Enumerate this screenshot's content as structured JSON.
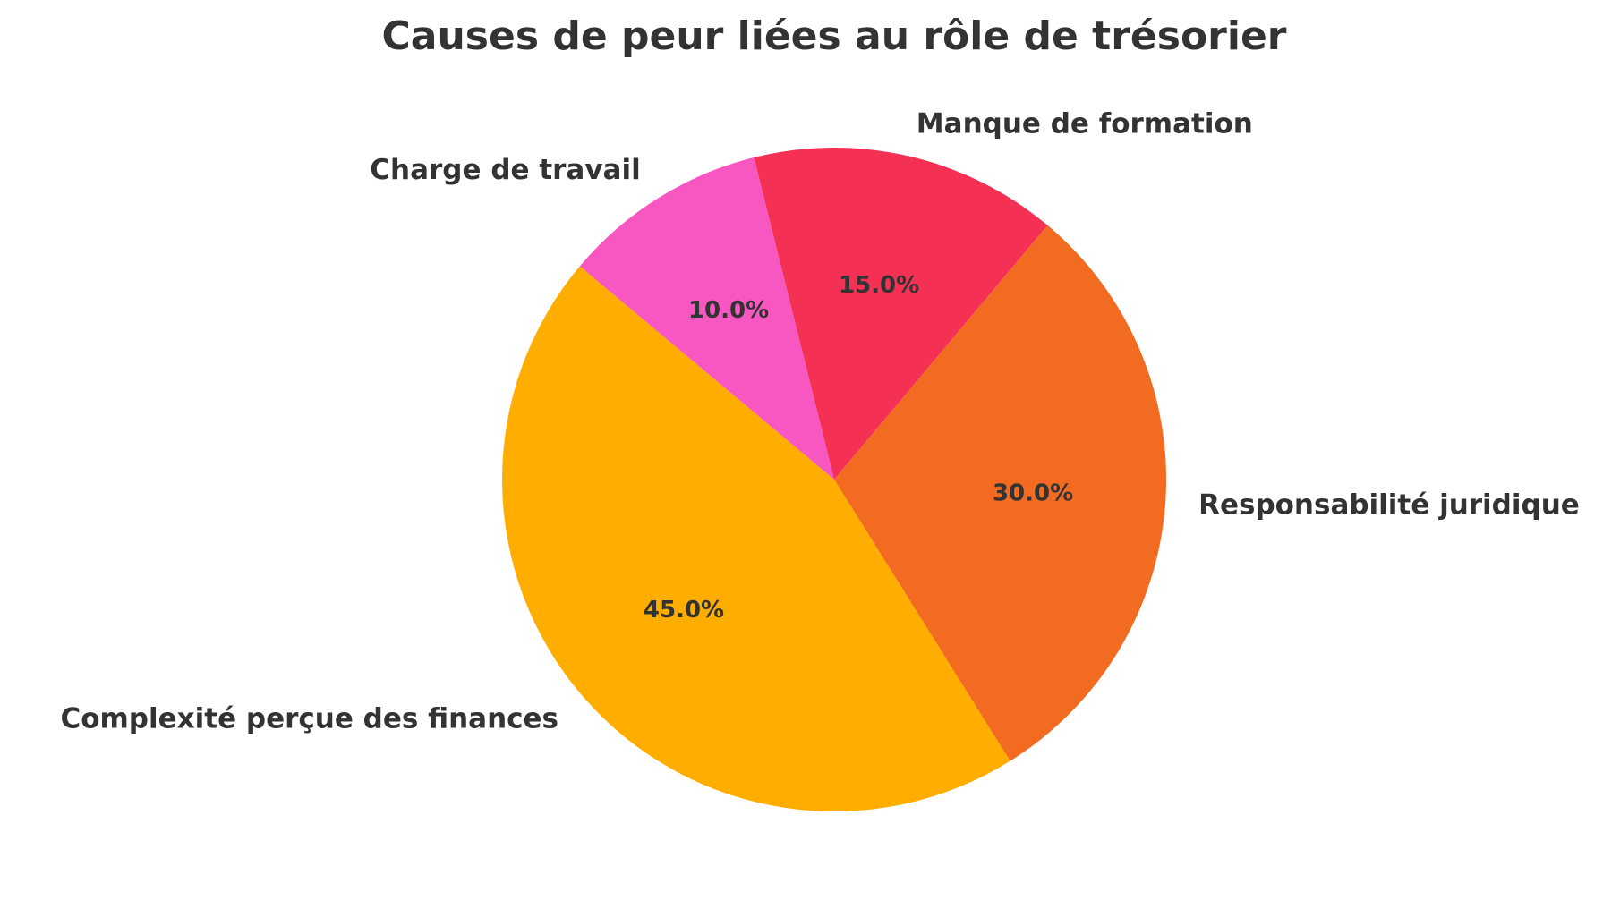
{
  "chart_data": {
    "type": "pie",
    "title": "Causes de peur liées au rôle de trésorier",
    "start_angle_deg": 140,
    "direction": "counterclockwise",
    "slices": [
      {
        "label": "Complexité perçue des finances",
        "value": 45.0,
        "pct_label": "45.0%",
        "color": "#FFAE00"
      },
      {
        "label": "Responsabilité juridique",
        "value": 30.0,
        "pct_label": "30.0%",
        "color": "#F26B21"
      },
      {
        "label": "Manque de formation",
        "value": 15.0,
        "pct_label": "15.0%",
        "color": "#F43155"
      },
      {
        "label": "Charge de travail",
        "value": 10.0,
        "pct_label": "10.0%",
        "color": "#F857C1"
      }
    ],
    "text_color": "#333333"
  }
}
